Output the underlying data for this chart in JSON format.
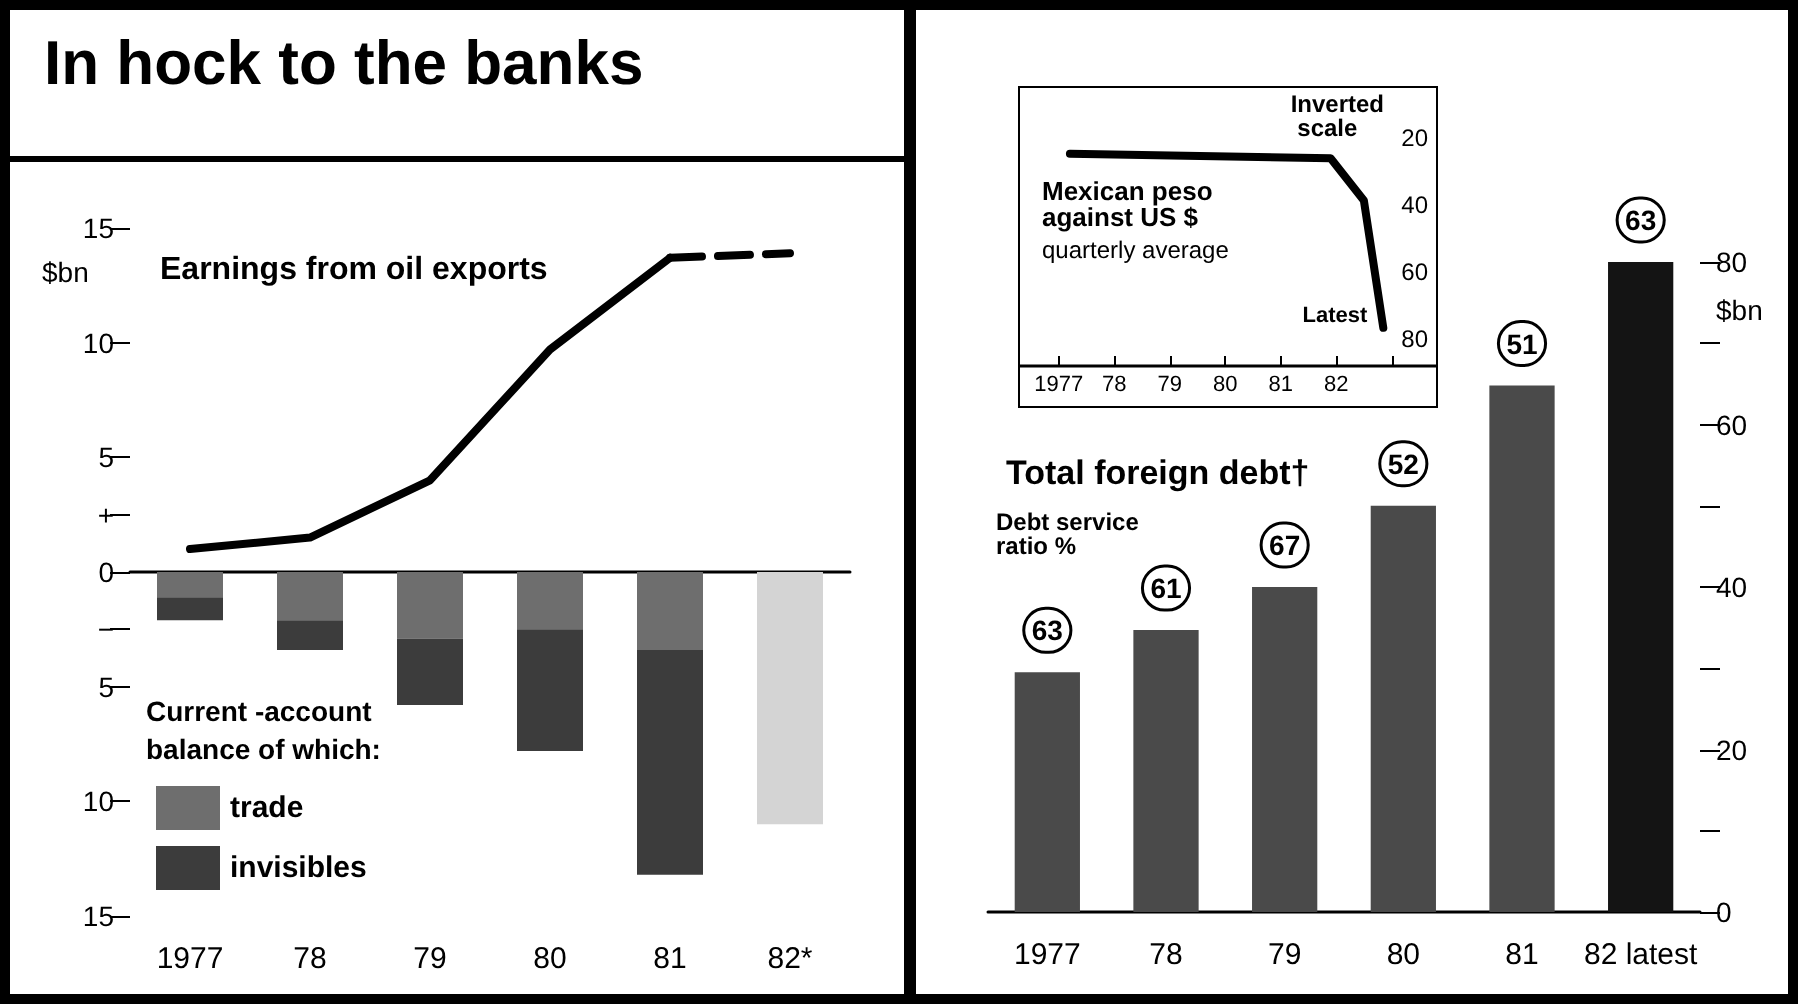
{
  "chart_data": [
    {
      "type": "bar",
      "title": "In hock to the banks",
      "categories": [
        "1977",
        "78",
        "79",
        "80",
        "81",
        "82*"
      ],
      "stacked": true,
      "ylabel": "$bn",
      "ylim": [
        -15,
        15
      ],
      "yticks": [
        15,
        10,
        5,
        {
          "value": 2.5,
          "label": "+"
        },
        0,
        {
          "value": -2.5,
          "label": "−"
        },
        {
          "value": -5,
          "label": "5"
        },
        {
          "value": -10,
          "label": "10"
        },
        {
          "value": -15,
          "label": "15"
        }
      ],
      "legend": "bottom left",
      "legend_title": "Current -account balance of which:",
      "marker": "none",
      "series": [
        {
          "name": "trade",
          "color": "#6e6e6e",
          "values": [
            -1.1,
            -2.1,
            -2.9,
            -2.5,
            -3.4,
            null
          ]
        },
        {
          "name": "invisibles",
          "color": "#3c3c3c",
          "values": [
            -1.0,
            -1.3,
            -2.9,
            -5.3,
            -9.8,
            null
          ]
        },
        {
          "color": "#d4d4d4",
          "values": [
            null,
            null,
            null,
            null,
            null,
            -11.0
          ]
        },
        {
          "type": "line",
          "name": "Earnings from oil exports",
          "color": "#000000",
          "values": [
            1.0,
            1.5,
            4.0,
            9.7,
            13.7,
            null
          ]
        },
        {
          "type": "line",
          "color": "#000000",
          "line_style": "dashed",
          "values": [
            null,
            null,
            null,
            null,
            13.7,
            13.9
          ]
        }
      ]
    },
    {
      "type": "line",
      "title": "Mexican peso against US $",
      "subtitle": "quarterly average",
      "x": [
        1977.2,
        1981.9,
        1982.5,
        1982.85
      ],
      "values": [
        24.6,
        26,
        38.6,
        76.6
      ],
      "color": "#000000",
      "marker": "none",
      "xlim": [
        1976.3,
        1983.8
      ],
      "xticks": [
        {
          "value": 1977,
          "label": "1977"
        },
        {
          "value": 1978,
          "label": "78"
        },
        {
          "value": 1979,
          "label": "79"
        },
        {
          "value": 1980,
          "label": "80"
        },
        {
          "value": 1981,
          "label": "81"
        },
        {
          "value": 1982,
          "label": "82"
        },
        {
          "value": 1983,
          "label": null
        }
      ],
      "ylim": [
        88,
        5
      ],
      "yticks": [
        20,
        40,
        60,
        80
      ],
      "annotations": [
        "Inverted scale",
        {
          "text": "Latest",
          "x": 1982.85,
          "y": 76.6
        }
      ]
    },
    {
      "type": "bar",
      "title": "Total foreign debt†",
      "categories": [
        "1977",
        "78",
        "79",
        "80",
        "81",
        "82 latest"
      ],
      "values": [
        29.5,
        34.7,
        40,
        50,
        64.8,
        80
      ],
      "colors": [
        "#4a4a4a",
        "#4a4a4a",
        "#4a4a4a",
        "#4a4a4a",
        "#4a4a4a",
        "#141414"
      ],
      "annotations": [
        "Debt service ratio %",
        {
          "text": "63",
          "x": "1977",
          "y": 29.5
        },
        {
          "text": "61",
          "x": "78",
          "y": 34.7
        },
        {
          "text": "67",
          "x": "79",
          "y": 40
        },
        {
          "text": "52",
          "x": "80",
          "y": 50
        },
        {
          "text": "51",
          "x": "81",
          "y": 64.8
        },
        {
          "text": "63",
          "x": "82 latest",
          "y": 80
        }
      ],
      "ylabel": "$bn",
      "ylim": [
        0,
        80
      ],
      "yticks": [
        0,
        {
          "value": 10,
          "label": null
        },
        20,
        {
          "value": 30,
          "label": null
        },
        40,
        {
          "value": 50,
          "label": null
        },
        60,
        {
          "value": 70,
          "label": null
        },
        80
      ]
    }
  ]
}
